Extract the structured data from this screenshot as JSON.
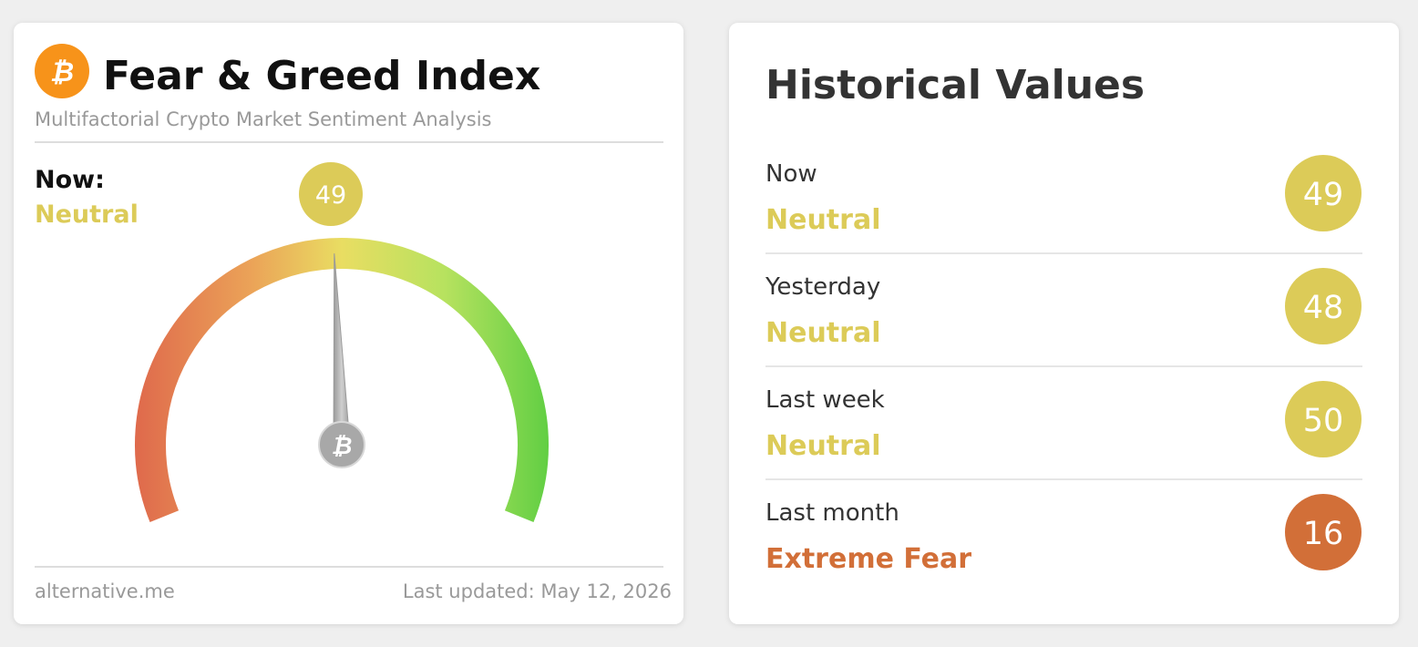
{
  "header": {
    "title": "Fear & Greed Index",
    "subtitle": "Multifactorial Crypto Market Sentiment Analysis"
  },
  "now": {
    "label": "Now:",
    "classification": "Neutral",
    "value": 49,
    "color": "#dccb58"
  },
  "gauge": {
    "range": [
      0,
      100
    ]
  },
  "footer": {
    "source": "alternative.me",
    "updated": "Last updated: May 12, 2026"
  },
  "historical": {
    "title": "Historical Values",
    "items": [
      {
        "label": "Now",
        "classification": "Neutral",
        "value": 49,
        "color": "#dccb58"
      },
      {
        "label": "Yesterday",
        "classification": "Neutral",
        "value": 48,
        "color": "#dccb58"
      },
      {
        "label": "Last week",
        "classification": "Neutral",
        "value": 50,
        "color": "#dccb58"
      },
      {
        "label": "Last month",
        "classification": "Extreme Fear",
        "value": 16,
        "color": "#d26f38"
      }
    ]
  }
}
